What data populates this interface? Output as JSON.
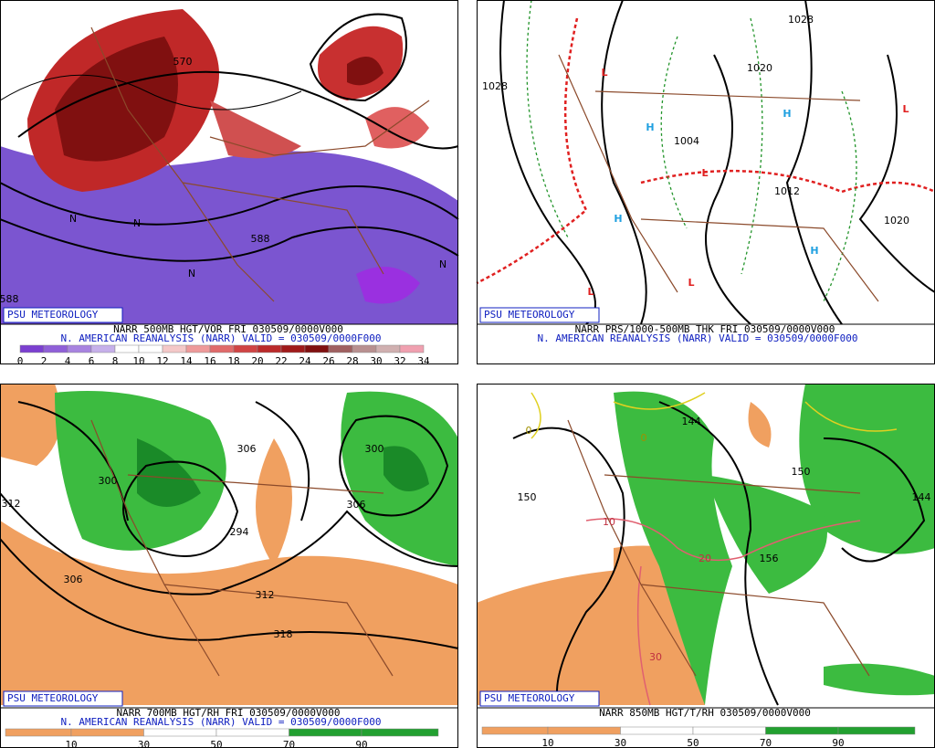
{
  "panels": [
    {
      "brand": "PSU METEOROLOGY",
      "caption": [
        "NARR 500MB HGT/VOR FRI 030509/0000V000",
        "N. AMERICAN REANALYSIS (NARR) VALID = 030509/0000F000"
      ],
      "scale": [
        0,
        2,
        4,
        6,
        8,
        10,
        12,
        14,
        16,
        18,
        20,
        22,
        24,
        26,
        28,
        30,
        32,
        34
      ],
      "scale_colors": [
        "#7b3fd0",
        "#8f5fd8",
        "#a883e0",
        "#c6b0ea",
        "#ffffff",
        "#ffffff",
        "#f4c8c8",
        "#ee9a9a",
        "#e06a6a",
        "#d04444",
        "#bb2a2a",
        "#a01a1a",
        "#801010",
        "#a06060",
        "#b89090",
        "#d0b0b0",
        "#f0a0b0"
      ],
      "labels": [
        "570",
        "588",
        "588",
        "N",
        "N",
        "N",
        "N"
      ]
    },
    {
      "brand": "PSU METEOROLOGY",
      "caption": [
        "NARR PRS/1000-500MB THK FRI 030509/0000V000",
        "N. AMERICAN REANALYSIS (NARR) VALID = 030509/0000F000"
      ],
      "labels": [
        "1028",
        "1020",
        "1004",
        "1012",
        "1020",
        "1028",
        "H",
        "H",
        "H",
        "H",
        "L",
        "L",
        "L",
        "L",
        "L"
      ]
    },
    {
      "brand": "PSU METEOROLOGY",
      "caption": [
        "NARR 700MB HGT/RH FRI 030509/0000V000",
        "N. AMERICAN REANALYSIS (NARR) VALID = 030509/0000F000"
      ],
      "scale": [
        10,
        30,
        50,
        70,
        90
      ],
      "scale_colors": [
        "#f0a060",
        "#f0a060",
        "#ffffff",
        "#ffffff",
        "#22a030",
        "#22a030"
      ],
      "labels": [
        "300",
        "306",
        "312",
        "294",
        "300",
        "306",
        "312",
        "318",
        "306"
      ]
    },
    {
      "brand": "PSU METEOROLOGY",
      "caption": [
        "NARR 850MB HGT/T/RH 030509/0000V000"
      ],
      "scale": [
        10,
        30,
        50,
        70,
        90
      ],
      "scale_colors": [
        "#f0a060",
        "#f0a060",
        "#ffffff",
        "#ffffff",
        "#22a030",
        "#22a030"
      ],
      "labels": [
        "150",
        "144",
        "150",
        "144",
        "156",
        "10",
        "20",
        "30",
        "0",
        "0"
      ]
    }
  ]
}
